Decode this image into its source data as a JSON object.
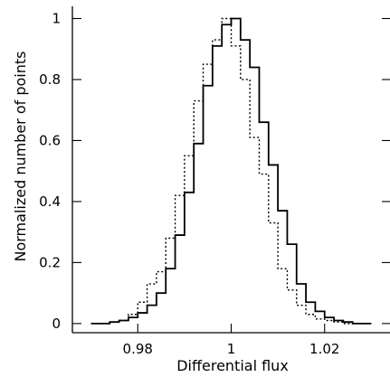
{
  "chart_data": {
    "type": "histogram",
    "title": "",
    "xlabel": "Differential flux",
    "ylabel": "Normalized number of points",
    "xlim": [
      0.966,
      1.034
    ],
    "ylim": [
      -0.03,
      1.04
    ],
    "grid": false,
    "x_ticks": [
      {
        "value": 0.98,
        "label": "0.98"
      },
      {
        "value": 1.0,
        "label": "1"
      },
      {
        "value": 1.02,
        "label": "1.02"
      }
    ],
    "y_ticks": [
      {
        "value": 0,
        "label": "0"
      },
      {
        "value": 0.2,
        "label": "0.2"
      },
      {
        "value": 0.4,
        "label": "0.4"
      },
      {
        "value": 0.6,
        "label": "0.6"
      },
      {
        "value": 0.8,
        "label": "0.8"
      },
      {
        "value": 1.0,
        "label": "1"
      }
    ],
    "bin_edges": [
      0.97,
      0.972,
      0.974,
      0.976,
      0.978,
      0.98,
      0.982,
      0.984,
      0.986,
      0.988,
      0.99,
      0.992,
      0.994,
      0.996,
      0.998,
      1.0,
      1.002,
      1.004,
      1.006,
      1.008,
      1.01,
      1.012,
      1.014,
      1.016,
      1.018,
      1.02,
      1.022,
      1.024,
      1.026,
      1.028,
      1.03
    ],
    "series": [
      {
        "style": "solid",
        "values": [
          0.0,
          0.0,
          0.005,
          0.01,
          0.02,
          0.035,
          0.06,
          0.1,
          0.18,
          0.29,
          0.43,
          0.59,
          0.78,
          0.91,
          0.98,
          1.0,
          0.93,
          0.84,
          0.66,
          0.52,
          0.37,
          0.26,
          0.13,
          0.07,
          0.04,
          0.02,
          0.01,
          0.005,
          0.0,
          0.0
        ]
      },
      {
        "style": "dotted",
        "values": [
          0.0,
          0.0,
          0.005,
          0.01,
          0.03,
          0.07,
          0.13,
          0.17,
          0.28,
          0.42,
          0.55,
          0.73,
          0.85,
          0.93,
          1.0,
          0.91,
          0.8,
          0.61,
          0.49,
          0.33,
          0.18,
          0.11,
          0.06,
          0.03,
          0.015,
          0.01,
          0.005,
          0.0,
          0.0,
          0.0
        ]
      }
    ]
  }
}
